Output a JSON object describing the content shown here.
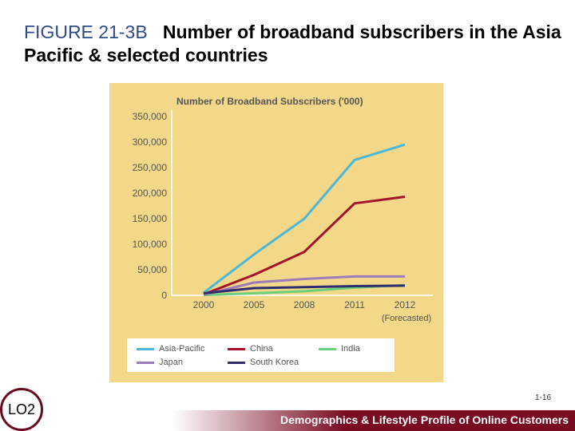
{
  "slide": {
    "figure_label": "FIGURE 21-3B",
    "title_rest": "Number of broadband subscribers in the Asia Pacific & selected countries",
    "page_number": "1-16",
    "lo_badge": "LO2",
    "footer_text": "Demographics & Lifestyle Profile of Online Customers"
  },
  "colors": {
    "panel_bg": "#f3d889",
    "footer": "#7a0c22",
    "asia_pacific": "#4bb8d8",
    "china": "#a3142a",
    "india": "#6ccf7a",
    "japan": "#9b7bb8",
    "south_korea": "#2e2e6e"
  },
  "chart_data": {
    "type": "line",
    "title": "Number of Broadband Subscribers ('000)",
    "x": [
      "2000",
      "2005",
      "2008",
      "2011",
      "2012"
    ],
    "x_sublabel": {
      "2012": "(Forecasted)"
    },
    "ylim": [
      0,
      350000
    ],
    "yticks": [
      "0",
      "50,000",
      "100,000",
      "150,000",
      "200,000",
      "250,000",
      "300,000",
      "350,000"
    ],
    "grid": false,
    "legend_position": "bottom",
    "series": [
      {
        "name": "Asia-Pacific",
        "values": [
          5000,
          80000,
          150000,
          265000,
          295000
        ]
      },
      {
        "name": "China",
        "values": [
          2000,
          40000,
          85000,
          180000,
          193000
        ]
      },
      {
        "name": "India",
        "values": [
          500,
          4000,
          8000,
          15000,
          20000
        ]
      },
      {
        "name": "Japan",
        "values": [
          1000,
          25000,
          32000,
          37000,
          37000
        ]
      },
      {
        "name": "South Korea",
        "values": [
          4000,
          14000,
          16000,
          18000,
          19000
        ]
      }
    ]
  }
}
